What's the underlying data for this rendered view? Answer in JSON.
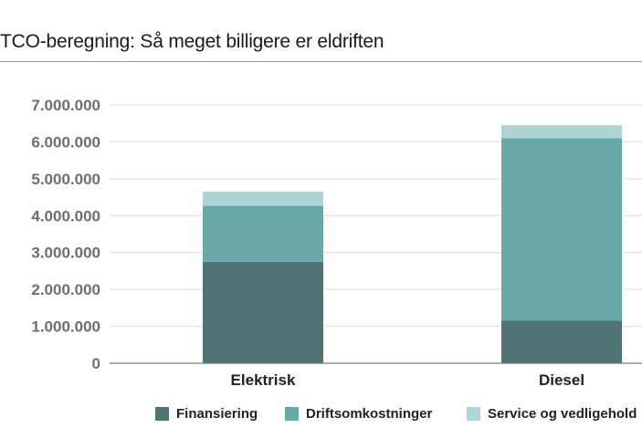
{
  "title": "TCO-beregning: Så meget billigere er eldriften",
  "colors": {
    "finansiering": "#527373",
    "drift": "#6aa9aa",
    "service": "#b0d4d6",
    "grid": "#dcdcdc",
    "axis": "#7a7a7a",
    "tick_text": "#6e6e6e"
  },
  "chart_data": {
    "type": "bar",
    "stacked": true,
    "categories": [
      "Elektrisk",
      "Diesel"
    ],
    "series": [
      {
        "name": "Finansiering",
        "values": [
          2750000,
          1150000
        ]
      },
      {
        "name": "Driftsomkostninger",
        "values": [
          1520000,
          4950000
        ]
      },
      {
        "name": "Service og vedligehold",
        "values": [
          380000,
          350000
        ]
      }
    ],
    "ylim": [
      0,
      7000000
    ],
    "yticks": [
      0,
      1000000,
      2000000,
      3000000,
      4000000,
      5000000,
      6000000,
      7000000
    ],
    "ytick_labels": [
      "0",
      "1.000.000",
      "2.000.000",
      "3.000.000",
      "4.000.000",
      "5.000.000",
      "6.000.000",
      "7.000.000"
    ],
    "grid": true,
    "legend_position": "bottom",
    "xlabel": "",
    "ylabel": ""
  }
}
